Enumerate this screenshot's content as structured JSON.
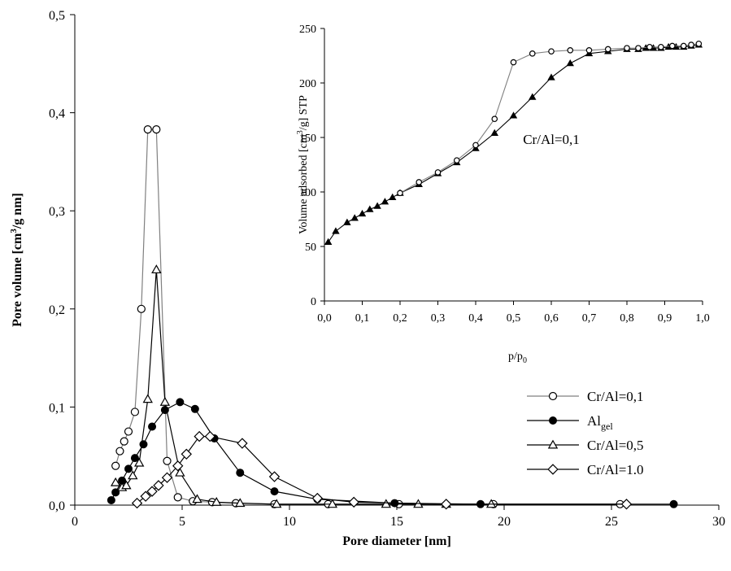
{
  "chart_data": [
    {
      "type": "line",
      "xlabel": "Pore diameter  [nm]",
      "ylabel": "Pore volume  [cm3/g nm]",
      "ylabel_parts": {
        "pre": "Pore volume  [cm",
        "sup": "3",
        "post": "/g nm]"
      },
      "xlim": [
        0,
        30
      ],
      "ylim": [
        0,
        0.5
      ],
      "x_ticks": [
        0,
        5,
        10,
        15,
        20,
        25,
        30
      ],
      "x_tick_labels": [
        "0",
        "5",
        "10",
        "15",
        "20",
        "25",
        "30"
      ],
      "y_ticks": [
        0,
        0.1,
        0.2,
        0.3,
        0.4,
        0.5
      ],
      "y_tick_labels": [
        "0,0",
        "0,1",
        "0,2",
        "0,3",
        "0,4",
        "0,5"
      ],
      "legend_position": "center-right",
      "series": [
        {
          "name": "Cr/Al=0,1",
          "marker": "circle-open",
          "line_color": "#808080",
          "x": [
            1.9,
            2.1,
            2.3,
            2.5,
            2.8,
            3.1,
            3.4,
            3.8,
            4.3,
            4.8,
            5.5,
            6.4,
            7.5,
            9.3,
            11.8,
            15.1,
            19.5,
            25.4
          ],
          "y": [
            0.04,
            0.055,
            0.065,
            0.075,
            0.095,
            0.2,
            0.383,
            0.383,
            0.045,
            0.008,
            0.004,
            0.003,
            0.002,
            0.001,
            0.001,
            0.001,
            0.001,
            0.001
          ]
        },
        {
          "name": "Algel",
          "name_parts": {
            "main": "Al",
            "sub": "gel"
          },
          "marker": "circle-filled",
          "line_color": "#000000",
          "x": [
            1.7,
            1.9,
            2.2,
            2.5,
            2.8,
            3.2,
            3.6,
            4.2,
            4.9,
            5.6,
            6.5,
            7.7,
            9.3,
            11.3,
            14.9,
            18.9,
            27.9
          ],
          "y": [
            0.005,
            0.013,
            0.025,
            0.037,
            0.048,
            0.062,
            0.08,
            0.097,
            0.105,
            0.098,
            0.068,
            0.033,
            0.014,
            0.006,
            0.002,
            0.001,
            0.001
          ]
        },
        {
          "name": "Cr/Al=0,5",
          "marker": "triangle-open",
          "line_color": "#000000",
          "x": [
            1.9,
            2.2,
            2.4,
            2.7,
            3.0,
            3.4,
            3.8,
            4.2,
            4.9,
            5.7,
            6.6,
            7.7,
            9.4,
            12.0,
            14.5,
            16.0,
            17.3,
            19.4
          ],
          "y": [
            0.023,
            0.018,
            0.02,
            0.03,
            0.043,
            0.108,
            0.24,
            0.105,
            0.033,
            0.006,
            0.003,
            0.002,
            0.001,
            0.001,
            0.001,
            0.001,
            0.001,
            0.001
          ]
        },
        {
          "name": "Cr/Al=1.0",
          "marker": "diamond-open",
          "line_color": "#000000",
          "x": [
            2.9,
            3.3,
            3.6,
            3.9,
            4.3,
            4.8,
            5.2,
            5.8,
            6.3,
            7.8,
            9.3,
            11.3,
            13.0,
            17.3,
            25.7
          ],
          "y": [
            0.002,
            0.009,
            0.014,
            0.02,
            0.028,
            0.04,
            0.052,
            0.07,
            0.07,
            0.063,
            0.029,
            0.007,
            0.003,
            0.001,
            0.001
          ]
        }
      ]
    },
    {
      "type": "line",
      "annotation": "Cr/Al=0,1",
      "xlabel": "p/p0",
      "xlabel_parts": {
        "main": "p/p",
        "sub": "0"
      },
      "ylabel": "Volume adsorbed [cm3/g] STP",
      "ylabel_parts": {
        "pre": "Volume adsorbed [cm",
        "sup": "3",
        "post": "/g] STP"
      },
      "xlim": [
        0,
        1.0
      ],
      "ylim": [
        0,
        250
      ],
      "x_ticks": [
        0,
        0.1,
        0.2,
        0.3,
        0.4,
        0.5,
        0.6,
        0.7,
        0.8,
        0.9,
        1.0
      ],
      "x_tick_labels": [
        "0,0",
        "0,1",
        "0,2",
        "0,3",
        "0,4",
        "0,5",
        "0,6",
        "0,7",
        "0,8",
        "0,9",
        "1,0"
      ],
      "y_ticks": [
        0,
        50,
        100,
        150,
        200,
        250
      ],
      "y_tick_labels": [
        "0",
        "50",
        "100",
        "150",
        "200",
        "250"
      ],
      "series": [
        {
          "role": "adsorption",
          "marker": "triangle-filled",
          "line_color": "#000000",
          "x": [
            0.01,
            0.03,
            0.06,
            0.08,
            0.1,
            0.12,
            0.14,
            0.16,
            0.18,
            0.2,
            0.25,
            0.3,
            0.35,
            0.4,
            0.45,
            0.5,
            0.55,
            0.6,
            0.65,
            0.7,
            0.75,
            0.8,
            0.83,
            0.85,
            0.87,
            0.89,
            0.91,
            0.93,
            0.95,
            0.97,
            0.99
          ],
          "y": [
            54,
            64,
            72,
            76,
            80,
            84,
            87,
            91,
            95,
            99,
            107,
            117,
            127,
            140,
            154,
            170,
            187,
            205,
            218,
            227,
            229,
            231,
            231,
            232,
            232,
            232,
            233,
            233,
            233,
            234,
            235
          ]
        },
        {
          "role": "desorption",
          "marker": "circle-open",
          "line_color": "#808080",
          "x": [
            0.99,
            0.97,
            0.95,
            0.92,
            0.89,
            0.86,
            0.83,
            0.8,
            0.75,
            0.7,
            0.65,
            0.6,
            0.55,
            0.5,
            0.45,
            0.4,
            0.35,
            0.3,
            0.25,
            0.2
          ],
          "y": [
            236,
            235,
            234,
            234,
            233,
            233,
            232,
            232,
            231,
            230,
            230,
            229,
            227,
            219,
            167,
            143,
            129,
            118,
            109,
            99
          ]
        }
      ]
    }
  ]
}
